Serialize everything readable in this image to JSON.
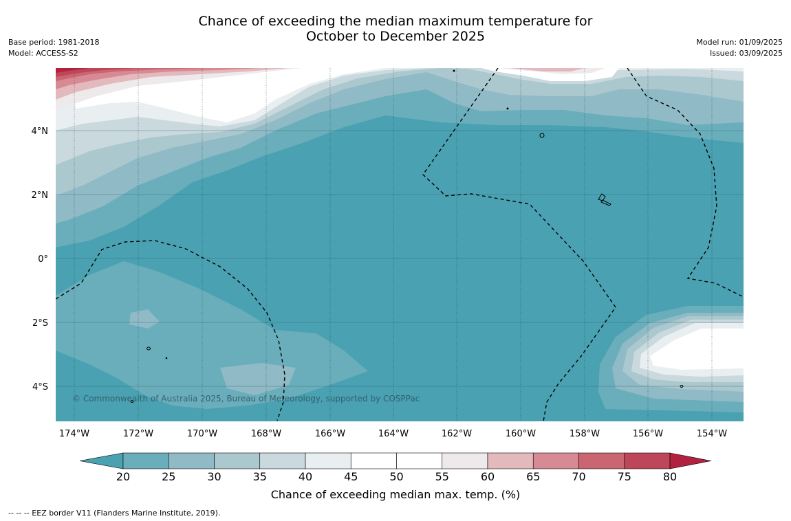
{
  "title": {
    "line1": "Chance of exceeding the median maximum temperature for",
    "line2": "October to December 2025"
  },
  "meta_left": {
    "base_period": "Base period: 1981-2018",
    "model": "Model: ACCESS-S2"
  },
  "meta_right": {
    "model_run": "Model run: 01/09/2025",
    "issued": "Issued: 03/09/2025"
  },
  "map": {
    "lat_labels": [
      "4°N",
      "2°N",
      "0°",
      "2°S",
      "4°S"
    ],
    "lon_labels": [
      "174°W",
      "172°W",
      "170°W",
      "168°W",
      "166°W",
      "164°W",
      "162°W",
      "160°W",
      "158°W",
      "156°W",
      "154°W"
    ],
    "copyright": "© Commonwealth of Australia 2025, Bureau of Meteorology, supported by COSPPac"
  },
  "colorbar": {
    "ticks": [
      "20",
      "25",
      "30",
      "35",
      "40",
      "45",
      "50",
      "55",
      "60",
      "65",
      "70",
      "75",
      "80"
    ],
    "colors": [
      "#4aa1b2",
      "#6aaebc",
      "#8fbac6",
      "#abc8ce",
      "#c9d9de",
      "#e9eff1",
      "#ffffff",
      "#ffffff",
      "#eeeaeb",
      "#e3b9be",
      "#d88a94",
      "#c96671",
      "#bd4658",
      "#b2223e"
    ],
    "label": "Chance of exceeding median max. temp. (%)"
  },
  "footer": "--  --  -- EEZ border V11 (Flanders Marine Institute, 2019)."
}
